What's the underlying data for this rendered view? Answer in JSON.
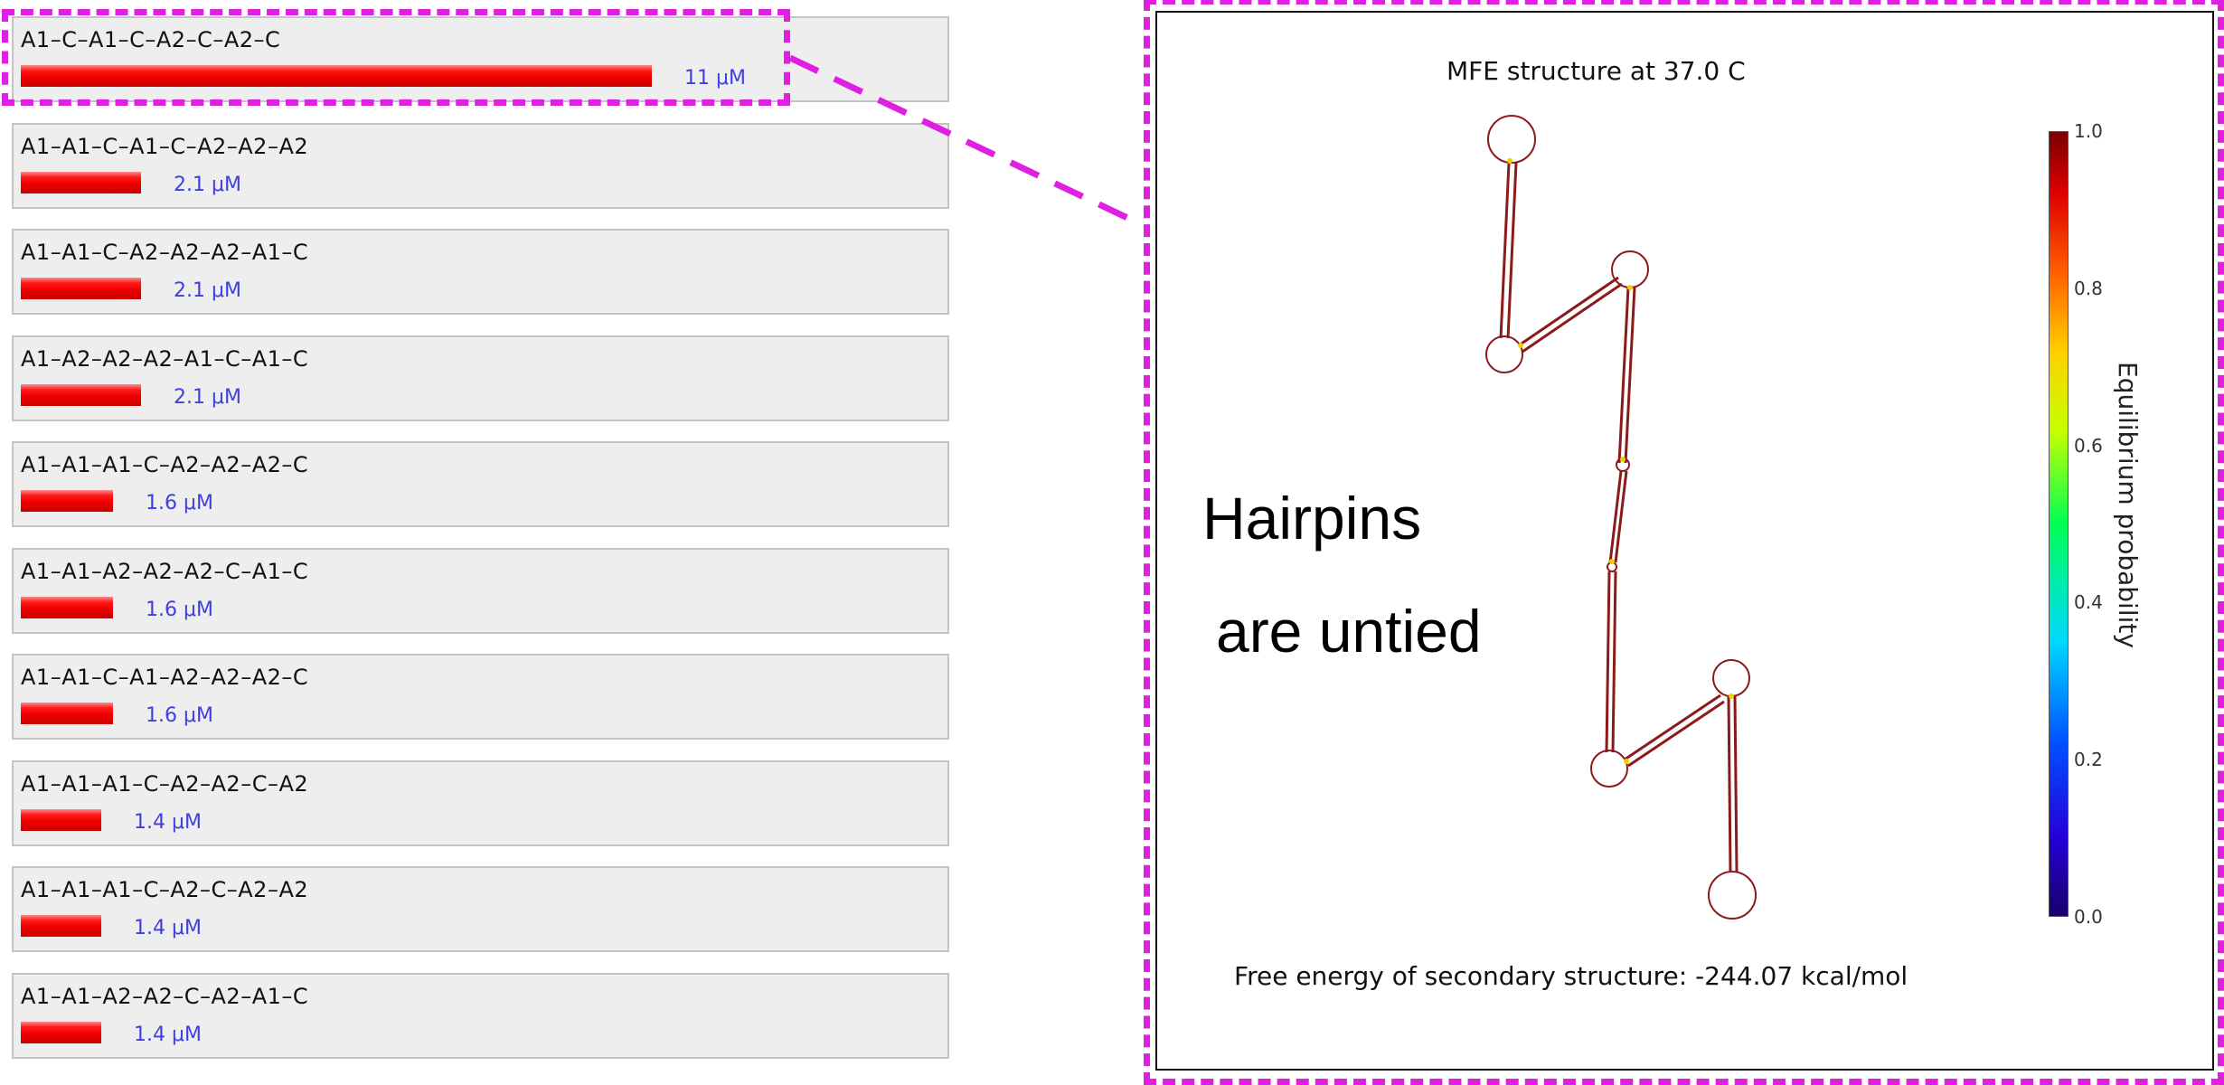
{
  "complexes": [
    {
      "name": "A1–C–A1–C–A2–C–A2–C",
      "concentration": "11 μM",
      "value_uM": 11
    },
    {
      "name": "A1–A1–C–A1–C–A2–A2–A2",
      "concentration": "2.1 μM",
      "value_uM": 2.1
    },
    {
      "name": "A1–A1–C–A2–A2–A2–A1–C",
      "concentration": "2.1 μM",
      "value_uM": 2.1
    },
    {
      "name": "A1–A2–A2–A2–A1–C–A1–C",
      "concentration": "2.1 μM",
      "value_uM": 2.1
    },
    {
      "name": "A1–A1–A1–C–A2–A2–A2–C",
      "concentration": "1.6 μM",
      "value_uM": 1.6
    },
    {
      "name": "A1–A1–A2–A2–A2–C–A1–C",
      "concentration": "1.6 μM",
      "value_uM": 1.6
    },
    {
      "name": "A1–A1–C–A1–A2–A2–A2–C",
      "concentration": "1.6 μM",
      "value_uM": 1.6
    },
    {
      "name": "A1–A1–A1–C–A2–A2–C–A2",
      "concentration": "1.4 μM",
      "value_uM": 1.4
    },
    {
      "name": "A1–A1–A1–C–A2–C–A2–A2",
      "concentration": "1.4 μM",
      "value_uM": 1.4
    },
    {
      "name": "A1–A1–A2–A2–C–A2–A1–C",
      "concentration": "1.4 μM",
      "value_uM": 1.4
    }
  ],
  "detail": {
    "title": "MFE structure at 37.0 C",
    "free_energy": "Free energy of secondary structure: -244.07 kcal/mol",
    "colorbar_label": "Equilibrium probability",
    "colorbar_ticks": [
      "1.0",
      "0.8",
      "0.6",
      "0.4",
      "0.2",
      "0.0"
    ]
  },
  "annotation": {
    "line1": "Hairpins",
    "line2": "are untied"
  },
  "colors": {
    "highlight": "#e020e0",
    "bar": "#f00000",
    "concentration_text": "#3f3fe0"
  }
}
